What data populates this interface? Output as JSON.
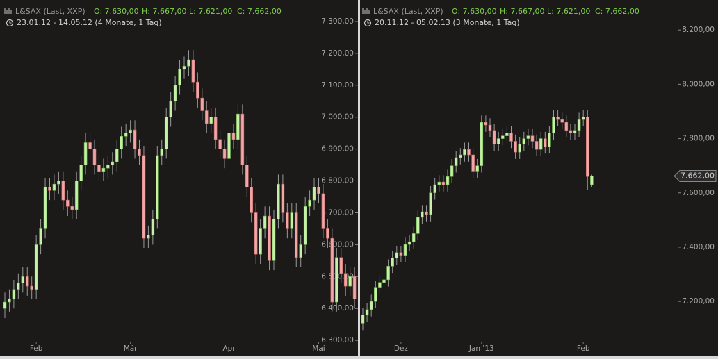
{
  "chart_data": [
    {
      "type": "candlestick",
      "title": "L&SAX (Last, XXP)",
      "ohlc_labels": [
        "O: 7.630,00",
        "H: 7.667,00",
        "L: 7.621,00",
        "C: 7.662,00"
      ],
      "subtitle": "23.01.12 - 14.05.12 (4 Monate, 1 Tag)",
      "up_color": "#c4f0a8",
      "down_color": "#f2a6a6",
      "ylim": [
        6296,
        7350
      ],
      "yticks": [
        {
          "value": 6300,
          "label": "6.300,00"
        },
        {
          "value": 6400,
          "label": "6.400,00"
        },
        {
          "value": 6500,
          "label": "6.500,00"
        },
        {
          "value": 6600,
          "label": "6.600,00"
        },
        {
          "value": 6700,
          "label": "6.700,00"
        },
        {
          "value": 6800,
          "label": "6.800,00"
        },
        {
          "value": 6900,
          "label": "6.900,00"
        },
        {
          "value": 7000,
          "label": "7.000,00"
        },
        {
          "value": 7100,
          "label": "7.100,00"
        },
        {
          "value": 7200,
          "label": "7.200,00"
        },
        {
          "value": 7300,
          "label": "7.300,00"
        }
      ],
      "categories": [
        null,
        null,
        null,
        null,
        null,
        null,
        null,
        "Feb",
        null,
        null,
        null,
        null,
        null,
        null,
        null,
        null,
        null,
        null,
        null,
        null,
        null,
        null,
        null,
        null,
        null,
        null,
        null,
        null,
        "Mär",
        null,
        null,
        null,
        null,
        null,
        null,
        null,
        null,
        null,
        null,
        null,
        null,
        null,
        null,
        null,
        null,
        null,
        null,
        null,
        null,
        null,
        "Apr",
        null,
        null,
        null,
        null,
        null,
        null,
        null,
        null,
        null,
        null,
        null,
        null,
        null,
        null,
        null,
        null,
        null,
        null,
        null,
        "Mai",
        null,
        null,
        null,
        null,
        null,
        null,
        null,
        null
      ],
      "open": [
        6400,
        6420,
        6430,
        6460,
        6480,
        6500,
        6470,
        6460,
        6600,
        6650,
        6780,
        6770,
        6790,
        6800,
        6740,
        6720,
        6710,
        6800,
        6850,
        6920,
        6900,
        6850,
        6830,
        6840,
        6850,
        6860,
        6900,
        6940,
        6950,
        6960,
        6900,
        6880,
        6620,
        6630,
        6680,
        6880,
        6900,
        7000,
        7050,
        7100,
        7150,
        7160,
        7180,
        7110,
        7060,
        7020,
        6980,
        7000,
        6930,
        6900,
        6870,
        6950,
        6930,
        7010,
        6850,
        6780,
        6700,
        6570,
        6650,
        6690,
        6550,
        6680,
        6790,
        6700,
        6650,
        6700,
        6560,
        6600,
        6720,
        6740,
        6780,
        6760,
        6650,
        6620,
        6420,
        6560,
        6510,
        6470,
        6500
      ],
      "high": [
        6450,
        6460,
        6490,
        6510,
        6530,
        6530,
        6500,
        6630,
        6680,
        6810,
        6810,
        6820,
        6830,
        6830,
        6770,
        6750,
        6830,
        6880,
        6950,
        6950,
        6930,
        6880,
        6870,
        6880,
        6890,
        6930,
        6970,
        6980,
        6990,
        6990,
        6930,
        6910,
        6660,
        6710,
        6910,
        6930,
        7030,
        7080,
        7130,
        7180,
        7190,
        7210,
        7210,
        7140,
        7090,
        7050,
        7030,
        7030,
        6960,
        6930,
        6980,
        6980,
        7040,
        7040,
        6880,
        6810,
        6730,
        6680,
        6720,
        6720,
        6710,
        6820,
        6820,
        6730,
        6730,
        6730,
        6630,
        6750,
        6770,
        6810,
        6810,
        6790,
        6680,
        6650,
        6590,
        6590,
        6540,
        6530,
        6530
      ],
      "low": [
        6370,
        6390,
        6400,
        6430,
        6450,
        6440,
        6430,
        6430,
        6570,
        6620,
        6740,
        6740,
        6760,
        6710,
        6690,
        6680,
        6680,
        6770,
        6820,
        6870,
        6820,
        6800,
        6800,
        6810,
        6820,
        6830,
        6870,
        6910,
        6920,
        6870,
        6850,
        6590,
        6590,
        6600,
        6650,
        6850,
        6870,
        6970,
        7020,
        7070,
        7120,
        7130,
        7080,
        7030,
        6990,
        6950,
        6950,
        6900,
        6870,
        6840,
        6840,
        6900,
        6900,
        6820,
        6750,
        6670,
        6540,
        6540,
        6620,
        6520,
        6520,
        6650,
        6670,
        6620,
        6620,
        6530,
        6530,
        6570,
        6690,
        6710,
        6730,
        6620,
        6590,
        6390,
        6390,
        6480,
        6440,
        6440,
        6400
      ],
      "close": [
        6420,
        6430,
        6460,
        6480,
        6500,
        6470,
        6460,
        6600,
        6650,
        6780,
        6770,
        6790,
        6800,
        6740,
        6720,
        6710,
        6800,
        6850,
        6920,
        6900,
        6850,
        6830,
        6840,
        6850,
        6860,
        6900,
        6940,
        6950,
        6960,
        6900,
        6880,
        6620,
        6630,
        6680,
        6880,
        6900,
        7000,
        7050,
        7100,
        7150,
        7160,
        7180,
        7110,
        7060,
        7020,
        6980,
        7000,
        6930,
        6900,
        6870,
        6950,
        6930,
        7010,
        6850,
        6780,
        6700,
        6570,
        6650,
        6690,
        6550,
        6680,
        6790,
        6700,
        6650,
        6700,
        6560,
        6600,
        6720,
        6740,
        6780,
        6760,
        6650,
        6620,
        6420,
        6560,
        6510,
        6470,
        6500,
        6430
      ]
    },
    {
      "type": "candlestick",
      "title": "L&SAX (Last, XXP)",
      "ohlc_labels": [
        "O: 7.630,00",
        "H: 7.667,00",
        "L: 7.621,00",
        "C: 7.662,00"
      ],
      "subtitle": "20.11.12 - 05.02.13 (3 Monate, 1 Tag)",
      "up_color": "#c4f0a8",
      "down_color": "#f2a6a6",
      "ylim": [
        7052,
        8290
      ],
      "yticks": [
        {
          "value": 7200,
          "label": "7.200,00"
        },
        {
          "value": 7400,
          "label": "7.400,00"
        },
        {
          "value": 7600,
          "label": "7.600,00"
        },
        {
          "value": 7800,
          "label": "7.800,00"
        },
        {
          "value": 8000,
          "label": "8.000,00"
        },
        {
          "value": 8200,
          "label": "8.200,00"
        }
      ],
      "last_price": {
        "value": 7662,
        "label": "7.662,00"
      },
      "categories": [
        null,
        null,
        null,
        null,
        null,
        null,
        null,
        null,
        null,
        "Dez",
        null,
        null,
        null,
        null,
        null,
        null,
        null,
        null,
        null,
        null,
        null,
        null,
        null,
        null,
        null,
        null,
        null,
        null,
        "Jan '13",
        null,
        null,
        null,
        null,
        null,
        null,
        null,
        null,
        null,
        null,
        null,
        null,
        null,
        null,
        null,
        null,
        null,
        null,
        null,
        null,
        null,
        null,
        null,
        "Feb",
        null,
        null
      ],
      "open": [
        7120,
        7150,
        7170,
        7200,
        7250,
        7270,
        7280,
        7330,
        7360,
        7380,
        7370,
        7410,
        7420,
        7450,
        7510,
        7530,
        7520,
        7600,
        7630,
        7640,
        7630,
        7660,
        7700,
        7730,
        7740,
        7760,
        7740,
        7680,
        7700,
        7860,
        7850,
        7830,
        7780,
        7800,
        7810,
        7820,
        7790,
        7750,
        7780,
        7800,
        7810,
        7790,
        7760,
        7800,
        7770,
        7820,
        7880,
        7870,
        7860,
        7830,
        7820,
        7830,
        7870,
        7880,
        7630
      ],
      "high": [
        7175,
        7195,
        7225,
        7275,
        7295,
        7305,
        7355,
        7385,
        7405,
        7405,
        7435,
        7445,
        7475,
        7535,
        7555,
        7555,
        7625,
        7655,
        7665,
        7665,
        7685,
        7725,
        7755,
        7765,
        7785,
        7785,
        7765,
        7725,
        7885,
        7885,
        7875,
        7855,
        7825,
        7835,
        7845,
        7845,
        7815,
        7805,
        7825,
        7835,
        7835,
        7815,
        7825,
        7825,
        7845,
        7905,
        7905,
        7895,
        7885,
        7855,
        7855,
        7895,
        7905,
        7905,
        7667
      ],
      "low": [
        7095,
        7125,
        7145,
        7175,
        7225,
        7245,
        7255,
        7305,
        7335,
        7345,
        7345,
        7385,
        7395,
        7425,
        7485,
        7495,
        7495,
        7575,
        7605,
        7605,
        7605,
        7635,
        7675,
        7705,
        7715,
        7715,
        7655,
        7655,
        7675,
        7825,
        7805,
        7755,
        7755,
        7775,
        7785,
        7765,
        7725,
        7725,
        7755,
        7775,
        7765,
        7735,
        7735,
        7745,
        7745,
        7795,
        7845,
        7835,
        7805,
        7795,
        7795,
        7805,
        7845,
        7610,
        7621
      ],
      "close": [
        7150,
        7170,
        7200,
        7250,
        7270,
        7280,
        7330,
        7360,
        7380,
        7370,
        7410,
        7420,
        7450,
        7510,
        7530,
        7520,
        7600,
        7630,
        7640,
        7630,
        7660,
        7700,
        7730,
        7740,
        7760,
        7740,
        7680,
        7700,
        7860,
        7850,
        7830,
        7780,
        7800,
        7810,
        7820,
        7790,
        7750,
        7780,
        7800,
        7810,
        7790,
        7760,
        7800,
        7770,
        7820,
        7880,
        7870,
        7860,
        7830,
        7820,
        7830,
        7870,
        7880,
        7660,
        7662
      ]
    }
  ]
}
